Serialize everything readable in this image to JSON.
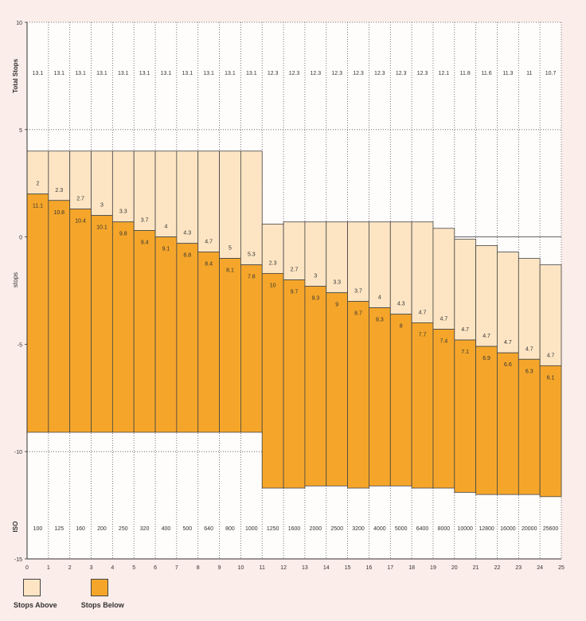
{
  "chart_data": {
    "type": "bar",
    "ylabel": "stops",
    "ylabel_top": "Total Stops",
    "ylabel_bottom": "ISO",
    "ylim": [
      -15,
      10
    ],
    "xlim": [
      0,
      25
    ],
    "xticks": [
      "0",
      "1",
      "2",
      "3",
      "4",
      "5",
      "6",
      "7",
      "8",
      "9",
      "10",
      "11",
      "12",
      "13",
      "14",
      "15",
      "16",
      "17",
      "18",
      "19",
      "20",
      "21",
      "22",
      "23",
      "24",
      "25"
    ],
    "yticks": [
      "10",
      "5",
      "0",
      "-5",
      "-10",
      "-15"
    ],
    "grid": true,
    "legend_position": "bottom-left",
    "iso": [
      "100",
      "125",
      "160",
      "200",
      "250",
      "320",
      "400",
      "500",
      "640",
      "800",
      "1000",
      "1250",
      "1600",
      "2000",
      "2500",
      "3200",
      "4000",
      "5000",
      "6400",
      "8000",
      "10000",
      "12800",
      "16000",
      "20000",
      "25600"
    ],
    "total_stops": [
      "13.1",
      "13.1",
      "13.1",
      "13.1",
      "13.1",
      "13.1",
      "13.1",
      "13.1",
      "13.1",
      "13.1",
      "13.1",
      "12.3",
      "12.3",
      "12.3",
      "12.3",
      "12.3",
      "12.3",
      "12.3",
      "12.3",
      "12.1",
      "11.8",
      "11.6",
      "11.3",
      "11",
      "10.7"
    ],
    "series": [
      {
        "name": "Stops Above",
        "color": "#fde5c4",
        "labels": [
          "2",
          "2.3",
          "2.7",
          "3",
          "3.3",
          "3.7",
          "4",
          "4.3",
          "4.7",
          "5",
          "5.3",
          "2.3",
          "2.7",
          "3",
          "3.3",
          "3.7",
          "4",
          "4.3",
          "4.7",
          "4.7",
          "4.7",
          "4.7",
          "4.7",
          "4.7",
          "4.7"
        ],
        "values": [
          2,
          2.3,
          2.7,
          3,
          3.3,
          3.7,
          4,
          4.3,
          4.7,
          5,
          5.3,
          2.3,
          2.7,
          3,
          3.3,
          3.7,
          4,
          4.3,
          4.7,
          4.7,
          4.7,
          4.7,
          4.7,
          4.7,
          4.7
        ]
      },
      {
        "name": "Stops Below",
        "color": "#f5a62a",
        "labels": [
          "11.1",
          "10.8",
          "10.4",
          "10.1",
          "9.8",
          "9.4",
          "9.1",
          "8.8",
          "8.4",
          "8.1",
          "7.8",
          "10",
          "9.7",
          "9.3",
          "9",
          "8.7",
          "8.3",
          "8",
          "7.7",
          "7.4",
          "7.1",
          "6.9",
          "6.6",
          "6.3",
          "6.1"
        ],
        "values": [
          11.1,
          10.8,
          10.4,
          10.1,
          9.8,
          9.4,
          9.1,
          8.8,
          8.4,
          8.1,
          7.8,
          10,
          9.7,
          9.3,
          9,
          8.7,
          8.3,
          8,
          7.7,
          7.4,
          7.1,
          6.9,
          6.6,
          6.3,
          6.1
        ]
      }
    ],
    "boundary": [
      2,
      1.7,
      1.3,
      1,
      0.7,
      0.3,
      0,
      -0.3,
      -0.7,
      -1,
      -1.3,
      -1.7,
      -2,
      -2.3,
      -2.6,
      -3,
      -3.3,
      -3.6,
      -4,
      -4.3,
      -4.8,
      -5.1,
      -5.4,
      -5.7,
      -6
    ]
  }
}
